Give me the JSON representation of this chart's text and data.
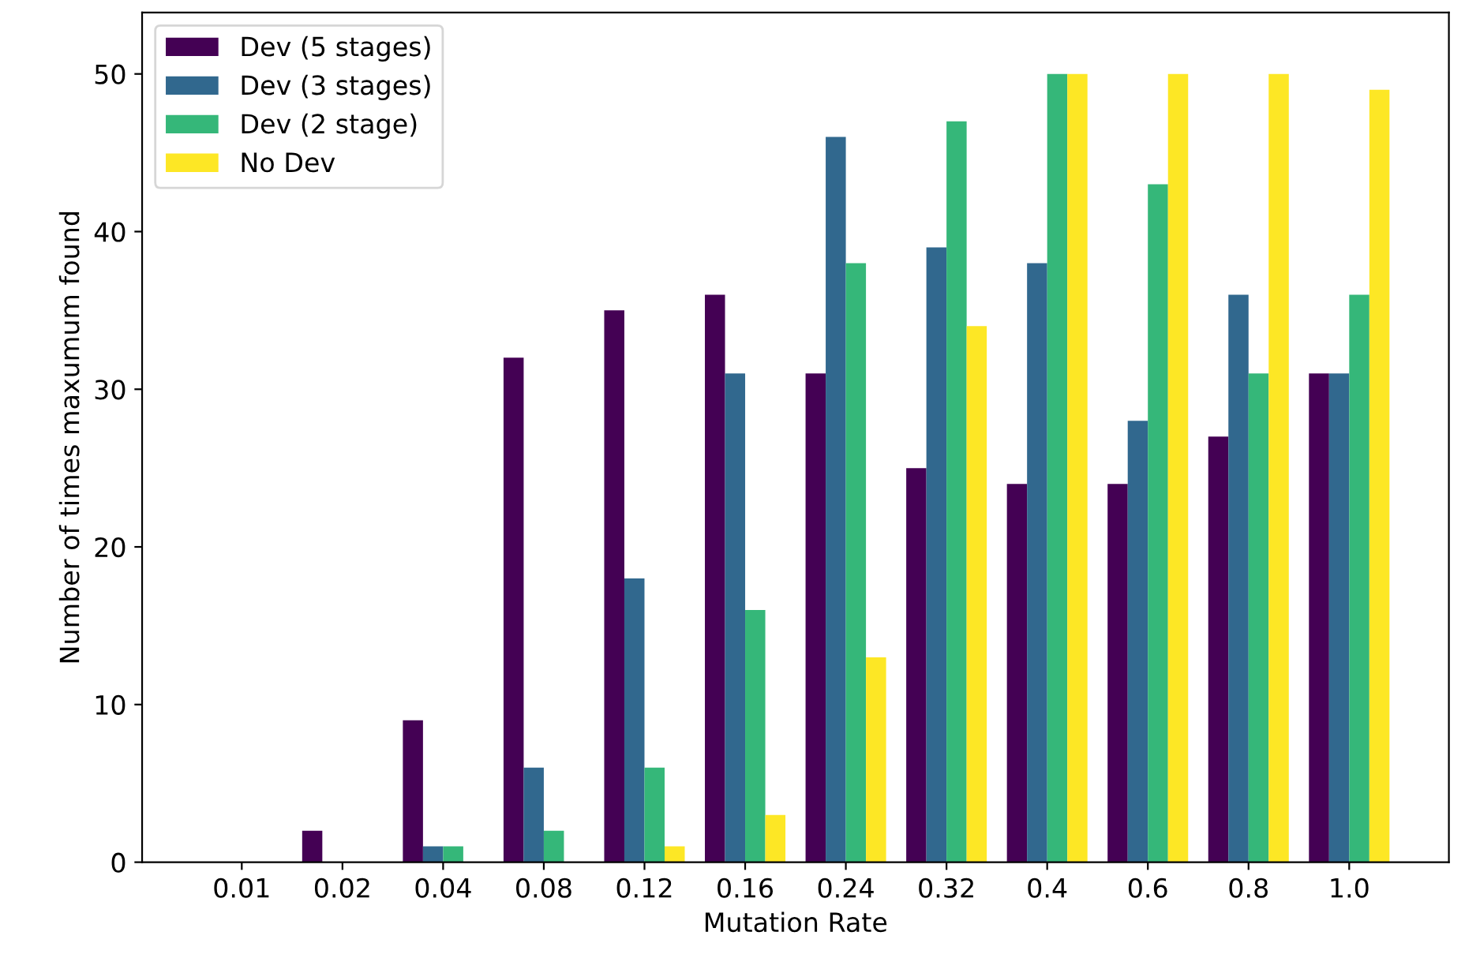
{
  "chart_data": {
    "type": "bar",
    "xlabel": "Mutation Rate",
    "ylabel": "Number of times maxumum found",
    "categories": [
      "0.01",
      "0.02",
      "0.04",
      "0.08",
      "0.12",
      "0.16",
      "0.24",
      "0.32",
      "0.4",
      "0.6",
      "0.8",
      "1.0"
    ],
    "series": [
      {
        "name": "Dev (5 stages)",
        "color": "#440154",
        "values": [
          0,
          2,
          9,
          32,
          35,
          36,
          31,
          25,
          24,
          24,
          27,
          31
        ]
      },
      {
        "name": "Dev (3 stages)",
        "color": "#31688e",
        "values": [
          0,
          0,
          1,
          6,
          18,
          31,
          46,
          39,
          38,
          28,
          36,
          31
        ]
      },
      {
        "name": "Dev (2 stage)",
        "color": "#35b779",
        "values": [
          0,
          0,
          1,
          2,
          6,
          16,
          38,
          47,
          50,
          43,
          31,
          36
        ]
      },
      {
        "name": "No Dev",
        "color": "#fde725",
        "values": [
          0,
          0,
          0,
          0,
          1,
          3,
          13,
          34,
          50,
          50,
          50,
          49
        ]
      }
    ],
    "ylim": [
      0,
      53.9
    ],
    "yticks": [
      0,
      10,
      20,
      30,
      40,
      50
    ],
    "grid": false,
    "legend": "top left"
  }
}
